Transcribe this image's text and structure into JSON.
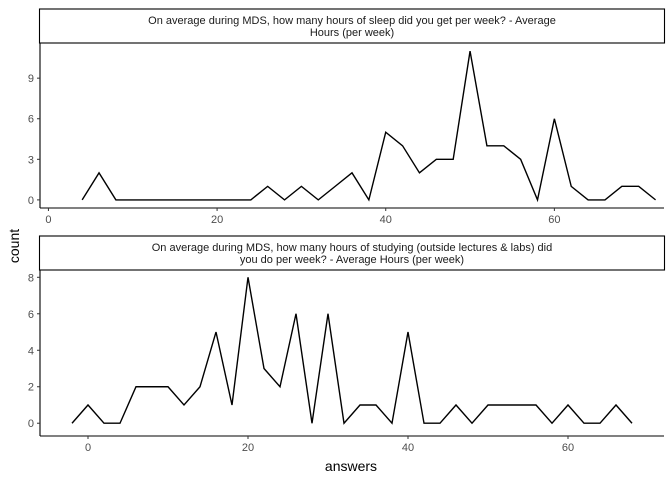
{
  "chart_data": {
    "type": "line",
    "xlabel": "answers",
    "ylabel": "count",
    "panels": [
      {
        "title_lines": [
          "On average during MDS, how many hours of sleep did you get per week? - Average",
          "Hours (per week)"
        ],
        "xlim": [
          -1,
          73
        ],
        "ylim": [
          -0.6,
          11.6
        ],
        "xticks": [
          0,
          20,
          40,
          60
        ],
        "yticks": [
          0,
          3,
          6,
          9
        ],
        "x": [
          4,
          6,
          8,
          10,
          12,
          14,
          16,
          18,
          20,
          22,
          24,
          26,
          28,
          30,
          32,
          34,
          36,
          38,
          40,
          42,
          44,
          46,
          48,
          50,
          52,
          54,
          56,
          58,
          60,
          62,
          64,
          66,
          68,
          70,
          72
        ],
        "y": [
          0,
          2,
          0,
          0,
          0,
          0,
          0,
          0,
          0,
          0,
          0,
          1,
          0,
          1,
          0,
          1,
          2,
          0,
          5,
          4,
          2,
          3,
          3,
          11,
          4,
          4,
          3,
          0,
          6,
          1,
          0,
          0,
          1,
          1,
          0
        ]
      },
      {
        "title_lines": [
          "On average during MDS, how many hours of studying (outside lectures & labs) did",
          "you do per week? - Average Hours (per week)"
        ],
        "xlim": [
          -6,
          72
        ],
        "ylim": [
          -0.7,
          8.4
        ],
        "xticks": [
          0,
          20,
          40,
          60
        ],
        "yticks": [
          0,
          2,
          4,
          6,
          8
        ],
        "x": [
          -2,
          0,
          2,
          4,
          6,
          8,
          10,
          12,
          14,
          16,
          18,
          20,
          22,
          24,
          26,
          28,
          30,
          32,
          34,
          36,
          38,
          40,
          42,
          44,
          46,
          48,
          50,
          52,
          54,
          56,
          58,
          60,
          62,
          64,
          66,
          68
        ],
        "y": [
          0,
          1,
          0,
          0,
          2,
          2,
          2,
          1,
          2,
          5,
          1,
          8,
          3,
          2,
          6,
          0,
          6,
          0,
          1,
          1,
          0,
          5,
          0,
          0,
          1,
          0,
          1,
          1,
          1,
          1,
          0,
          1,
          0,
          0,
          1,
          0
        ]
      }
    ]
  }
}
